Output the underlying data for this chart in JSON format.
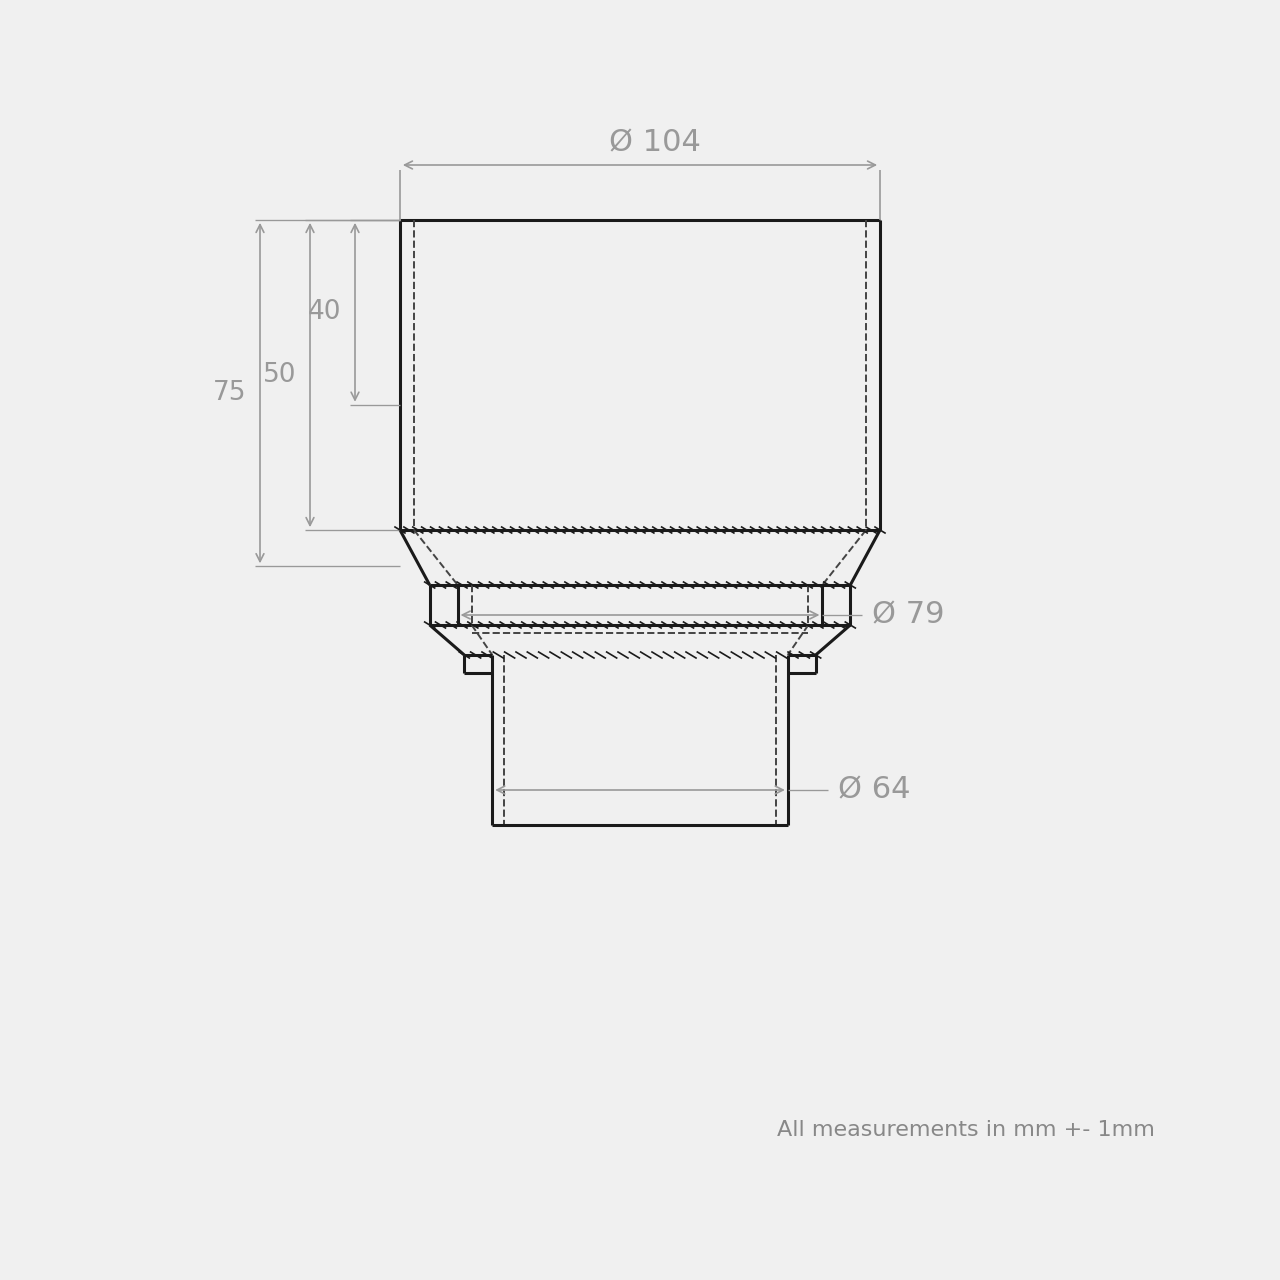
{
  "bg_color": "#f0f0f0",
  "line_color": "#1a1a1a",
  "dim_color": "#999999",
  "dash_color": "#444444",
  "note_text": "All measurements in mm +- 1mm",
  "dim_104_label": "Ø 104",
  "dim_79_label": "Ø 79",
  "dim_64_label": "Ø 64",
  "dim_40_label": "40",
  "dim_50_label": "50",
  "dim_75_label": "75"
}
